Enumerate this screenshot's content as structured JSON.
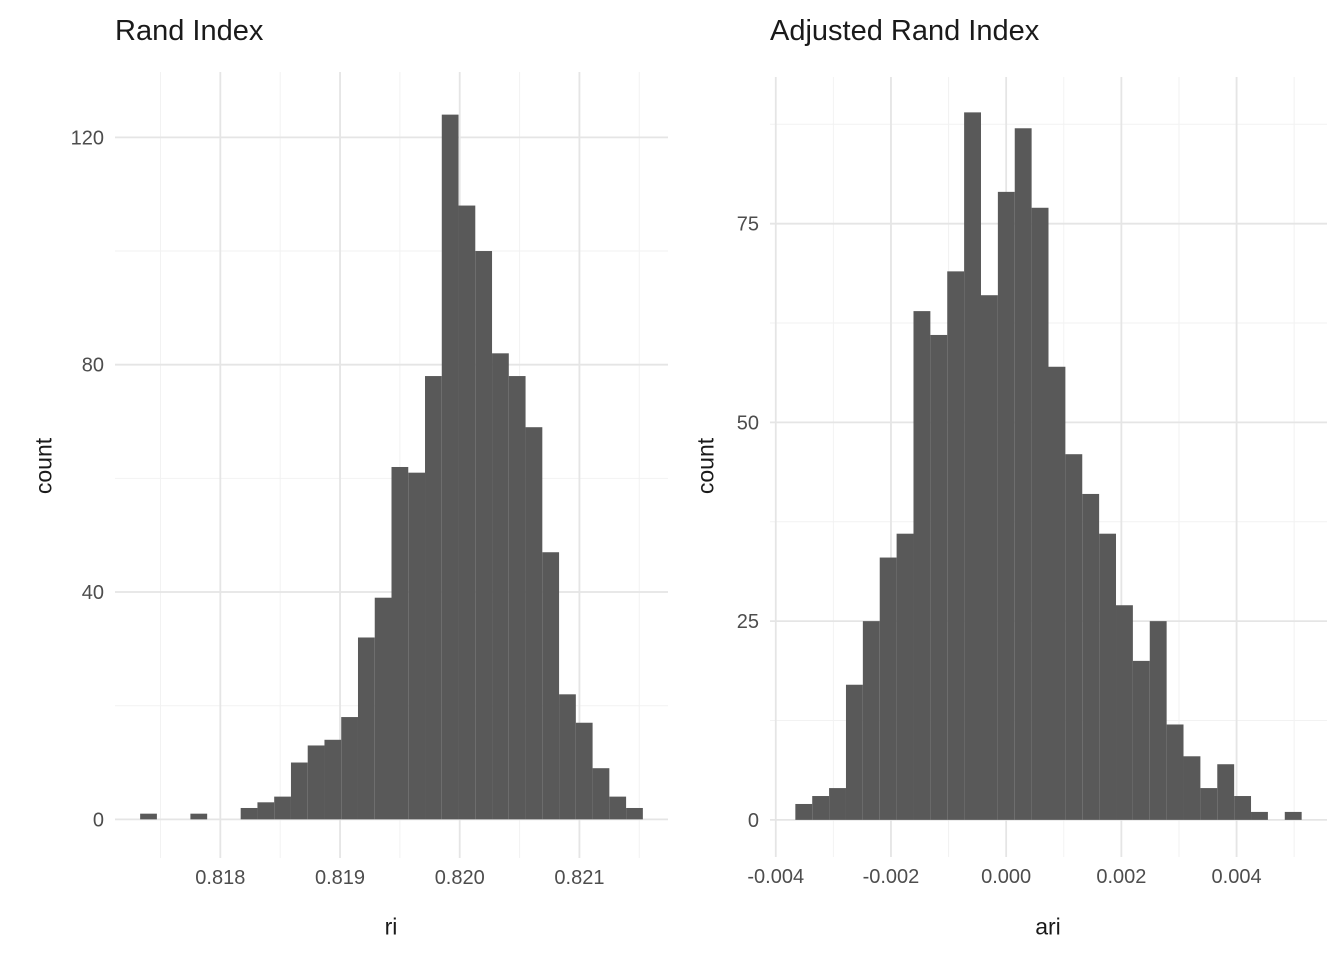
{
  "figure": {
    "background": "#ffffff",
    "bar_color": "#595959",
    "grid_major_color": "#e5e5e5",
    "grid_minor_color": "#f2f2f2",
    "tick_label_color": "#4d4d4d"
  },
  "chart_data": [
    {
      "type": "bar",
      "subtype": "histogram",
      "title": "Rand Index",
      "xlabel": "ri",
      "ylabel": "count",
      "bin_start": 0.81733,
      "bin_width": 0.00014,
      "counts": [
        1,
        0,
        0,
        1,
        0,
        0,
        2,
        3,
        4,
        10,
        13,
        14,
        18,
        32,
        39,
        62,
        61,
        78,
        124,
        108,
        100,
        82,
        78,
        69,
        47,
        22,
        17,
        9,
        4,
        2
      ],
      "total_observations": 1000,
      "peak_count": 124,
      "x_ticks": {
        "values": [
          0.818,
          0.819,
          0.82,
          0.821
        ],
        "labels": [
          "0.818",
          "0.819",
          "0.820",
          "0.821"
        ]
      },
      "x_minor": [
        0.8175,
        0.8185,
        0.8195,
        0.8205,
        0.8215
      ],
      "y_ticks": {
        "values": [
          0,
          40,
          80,
          120
        ],
        "labels": [
          "0",
          "40",
          "80",
          "120"
        ]
      },
      "y_minor": [
        20,
        60,
        100
      ],
      "xlim": [
        0.81712,
        0.82174
      ],
      "ylim": [
        -6.8,
        131.5
      ],
      "grid": true,
      "legend": "none"
    },
    {
      "type": "bar",
      "subtype": "histogram",
      "title": "Adjusted Rand Index",
      "xlabel": "ari",
      "ylabel": "count",
      "bin_start": -0.00366,
      "bin_width": 0.000293,
      "counts": [
        2,
        3,
        4,
        17,
        25,
        33,
        36,
        64,
        61,
        69,
        89,
        66,
        79,
        87,
        77,
        57,
        46,
        41,
        36,
        27,
        20,
        25,
        12,
        8,
        4,
        7,
        3,
        1,
        0,
        1
      ],
      "total_observations": 1000,
      "peak_count": 89,
      "x_ticks": {
        "values": [
          -0.004,
          -0.002,
          0.0,
          0.002,
          0.004
        ],
        "labels": [
          "-0.004",
          "-0.002",
          "0.000",
          "0.002",
          "0.004"
        ]
      },
      "x_minor": [
        -0.003,
        -0.001,
        0.001,
        0.003,
        0.005
      ],
      "y_ticks": {
        "values": [
          0,
          25,
          50,
          75
        ],
        "labels": [
          "0",
          "25",
          "50",
          "75"
        ]
      },
      "y_minor": [
        12.5,
        37.5,
        62.5,
        87.5
      ],
      "xlim": [
        -0.0041,
        0.00557
      ],
      "ylim": [
        -4.67,
        93.45
      ],
      "grid": true,
      "legend": "none"
    }
  ]
}
